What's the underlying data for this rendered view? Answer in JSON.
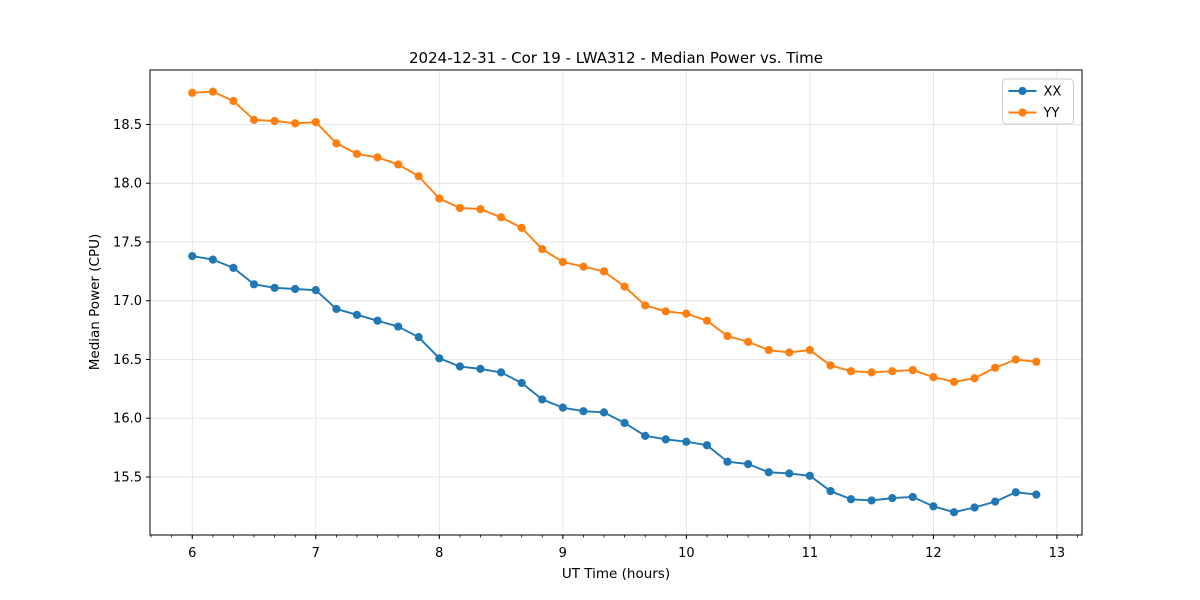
{
  "chart_data": {
    "type": "line",
    "title": "2024-12-31 - Cor 19 - LWA312 - Median Power vs. Time",
    "xlabel": "UT Time (hours)",
    "ylabel": "Median Power (CPU)",
    "xlim": [
      5.658,
      13.203
    ],
    "ylim": [
      15.006,
      18.964
    ],
    "xticks": [
      6,
      7,
      8,
      9,
      10,
      11,
      12,
      13
    ],
    "xtick_labels": [
      "6",
      "7",
      "8",
      "9",
      "10",
      "11",
      "12",
      "13"
    ],
    "x_minor_step_hours": 0.16667,
    "yticks": [
      15.5,
      16.0,
      16.5,
      17.0,
      17.5,
      18.0,
      18.5
    ],
    "ytick_labels": [
      "15.5",
      "16.0",
      "16.5",
      "17.0",
      "17.5",
      "18.0",
      "18.5"
    ],
    "grid": true,
    "legend_position": "upper right",
    "x": [
      6.0,
      6.167,
      6.333,
      6.5,
      6.667,
      6.833,
      7.0,
      7.167,
      7.333,
      7.5,
      7.667,
      7.833,
      8.0,
      8.167,
      8.333,
      8.5,
      8.667,
      8.833,
      9.0,
      9.167,
      9.333,
      9.5,
      9.667,
      9.833,
      10.0,
      10.167,
      10.333,
      10.5,
      10.667,
      10.833,
      11.0,
      11.167,
      11.333,
      11.5,
      11.667,
      11.833,
      12.0,
      12.167,
      12.333,
      12.5,
      12.667,
      12.833
    ],
    "series": [
      {
        "name": "XX",
        "color": "#1f77b4",
        "values": [
          17.38,
          17.35,
          17.28,
          17.14,
          17.11,
          17.1,
          17.09,
          16.93,
          16.88,
          16.83,
          16.78,
          16.69,
          16.51,
          16.44,
          16.42,
          16.39,
          16.3,
          16.16,
          16.09,
          16.06,
          16.05,
          15.96,
          15.85,
          15.82,
          15.8,
          15.77,
          15.63,
          15.61,
          15.54,
          15.53,
          15.51,
          15.38,
          15.31,
          15.3,
          15.32,
          15.33,
          15.25,
          15.2,
          15.24,
          15.29,
          15.37,
          15.35
        ]
      },
      {
        "name": "YY",
        "color": "#ff7f0e",
        "values": [
          18.77,
          18.78,
          18.7,
          18.54,
          18.53,
          18.51,
          18.52,
          18.34,
          18.25,
          18.22,
          18.16,
          18.06,
          17.87,
          17.79,
          17.78,
          17.71,
          17.62,
          17.44,
          17.33,
          17.29,
          17.25,
          17.12,
          16.96,
          16.91,
          16.89,
          16.83,
          16.7,
          16.65,
          16.58,
          16.56,
          16.58,
          16.45,
          16.4,
          16.39,
          16.4,
          16.41,
          16.35,
          16.31,
          16.34,
          16.43,
          16.5,
          16.48
        ]
      }
    ]
  }
}
